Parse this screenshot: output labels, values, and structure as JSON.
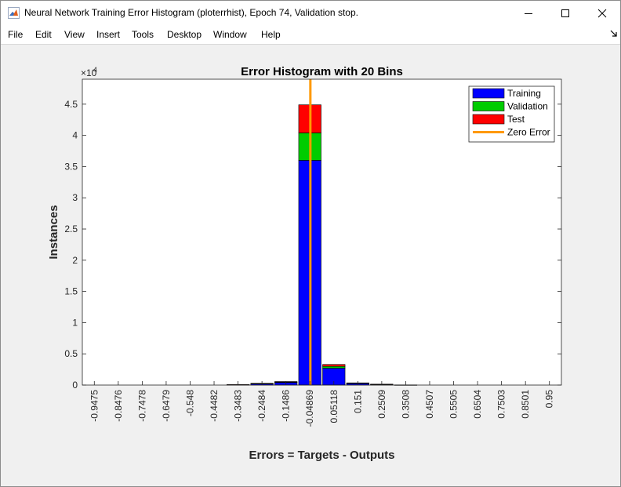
{
  "window": {
    "title": "Neural Network Training Error Histogram (ploterrhist), Epoch 74, Validation stop."
  },
  "menu": {
    "items": [
      "File",
      "Edit",
      "View",
      "Insert",
      "Tools",
      "Desktop",
      "Window",
      "Help"
    ]
  },
  "icons": {
    "app": "matlab-icon",
    "minimize": "minimize-icon",
    "maximize": "maximize-icon",
    "close": "close-icon",
    "dock": "dock-arrow-icon"
  },
  "chart_data": {
    "type": "bar",
    "stacked": true,
    "title": "Error Histogram with 20 Bins",
    "xlabel": "Errors = Targets - Outputs",
    "ylabel": "Instances",
    "y_exponent_label": "×10",
    "y_exponent": "4",
    "ylim": [
      0,
      4.9
    ],
    "yticks": [
      "0",
      "0.5",
      "1",
      "1.5",
      "2",
      "2.5",
      "3",
      "3.5",
      "4",
      "4.5"
    ],
    "ytick_values": [
      0,
      0.5,
      1,
      1.5,
      2,
      2.5,
      3,
      3.5,
      4,
      4.5
    ],
    "categories": [
      "-0.9475",
      "-0.8476",
      "-0.7478",
      "-0.6479",
      "-0.548",
      "-0.4482",
      "-0.3483",
      "-0.2484",
      "-0.1486",
      "-0.04869",
      "0.05118",
      "0.151",
      "0.2509",
      "0.3508",
      "0.4507",
      "0.5505",
      "0.6504",
      "0.7503",
      "0.8501",
      "0.95"
    ],
    "series": [
      {
        "name": "Training",
        "color": "#0000ff",
        "values": [
          0,
          0,
          0,
          0,
          0,
          0,
          0.005,
          0.02,
          0.04,
          3.6,
          0.27,
          0.025,
          0.01,
          0.003,
          0,
          0,
          0,
          0,
          0,
          0
        ]
      },
      {
        "name": "Validation",
        "color": "#00cc00",
        "values": [
          0,
          0,
          0,
          0,
          0,
          0,
          0.001,
          0.004,
          0.008,
          0.44,
          0.03,
          0.005,
          0.002,
          0,
          0,
          0,
          0,
          0,
          0,
          0
        ]
      },
      {
        "name": "Test",
        "color": "#ff0000",
        "values": [
          0,
          0,
          0,
          0,
          0,
          0,
          0.001,
          0.004,
          0.008,
          0.45,
          0.03,
          0.005,
          0.002,
          0,
          0,
          0,
          0,
          0,
          0,
          0
        ]
      }
    ],
    "zero_error": {
      "name": "Zero Error",
      "color": "#ff9900",
      "bin_position": 9.52
    },
    "legend_position": "top-right",
    "grid": false
  }
}
